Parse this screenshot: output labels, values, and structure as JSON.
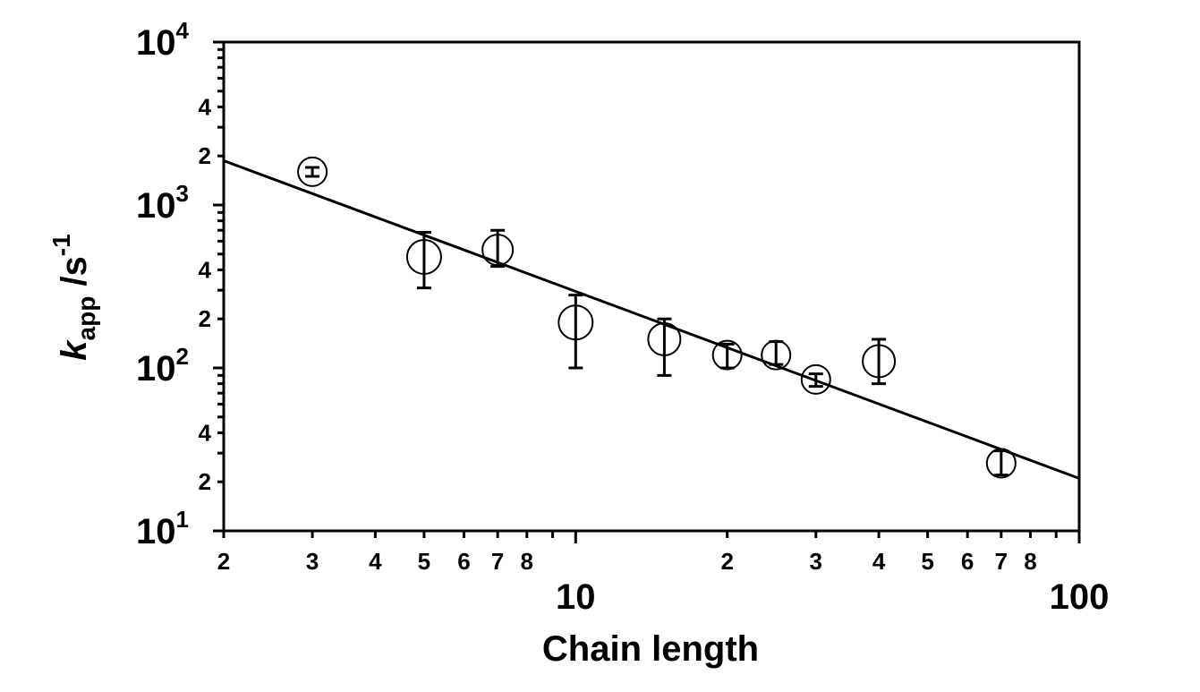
{
  "chart_data": {
    "type": "scatter",
    "xlabel": "Chain length",
    "ylabel": "k",
    "ylabel_sub": "app",
    "ylabel_unit": " /s",
    "ylabel_unit_sup": "-1",
    "x_scale": "log",
    "y_scale": "log",
    "xlim": [
      2,
      100
    ],
    "ylim": [
      10,
      10000
    ],
    "x_major_ticks": [
      {
        "value": 10,
        "label": "10"
      },
      {
        "value": 100,
        "label": "100"
      }
    ],
    "x_minor_labels": [
      {
        "value": 2,
        "label": "2"
      },
      {
        "value": 3,
        "label": "3"
      },
      {
        "value": 4,
        "label": "4"
      },
      {
        "value": 5,
        "label": "5"
      },
      {
        "value": 6,
        "label": "6"
      },
      {
        "value": 7,
        "label": "7"
      },
      {
        "value": 8,
        "label": "8"
      },
      {
        "value": 20,
        "label": "2"
      },
      {
        "value": 30,
        "label": "3"
      },
      {
        "value": 40,
        "label": "4"
      },
      {
        "value": 50,
        "label": "5"
      },
      {
        "value": 60,
        "label": "6"
      },
      {
        "value": 70,
        "label": "7"
      },
      {
        "value": 80,
        "label": "8"
      }
    ],
    "y_major_ticks": [
      {
        "value": 10,
        "base": "10",
        "exp": "1"
      },
      {
        "value": 100,
        "base": "10",
        "exp": "2"
      },
      {
        "value": 1000,
        "base": "10",
        "exp": "3"
      },
      {
        "value": 10000,
        "base": "10",
        "exp": "4"
      }
    ],
    "y_minor_labels": [
      {
        "value": 20,
        "label": "2"
      },
      {
        "value": 40,
        "label": "4"
      },
      {
        "value": 200,
        "label": "2"
      },
      {
        "value": 400,
        "label": "4"
      },
      {
        "value": 2000,
        "label": "2"
      },
      {
        "value": 4000,
        "label": "4"
      }
    ],
    "grid": false,
    "legend": "none",
    "points": [
      {
        "x": 3,
        "y": 1600,
        "y_low": 1500,
        "y_high": 1700,
        "r": 16
      },
      {
        "x": 5,
        "y": 480,
        "y_low": 310,
        "y_high": 680,
        "r": 19
      },
      {
        "x": 7,
        "y": 530,
        "y_low": 420,
        "y_high": 700,
        "r": 17
      },
      {
        "x": 10,
        "y": 190,
        "y_low": 100,
        "y_high": 280,
        "r": 19
      },
      {
        "x": 15,
        "y": 150,
        "y_low": 90,
        "y_high": 200,
        "r": 18
      },
      {
        "x": 20,
        "y": 120,
        "y_low": 100,
        "y_high": 140,
        "r": 16
      },
      {
        "x": 25,
        "y": 120,
        "y_low": 105,
        "y_high": 145,
        "r": 16
      },
      {
        "x": 30,
        "y": 85,
        "y_low": 77,
        "y_high": 92,
        "r": 16
      },
      {
        "x": 40,
        "y": 110,
        "y_low": 80,
        "y_high": 150,
        "r": 18
      },
      {
        "x": 70,
        "y": 26,
        "y_low": 22,
        "y_high": 31,
        "r": 16
      }
    ],
    "fit_line": {
      "x": [
        2,
        100
      ],
      "y": [
        1870,
        21
      ]
    }
  }
}
